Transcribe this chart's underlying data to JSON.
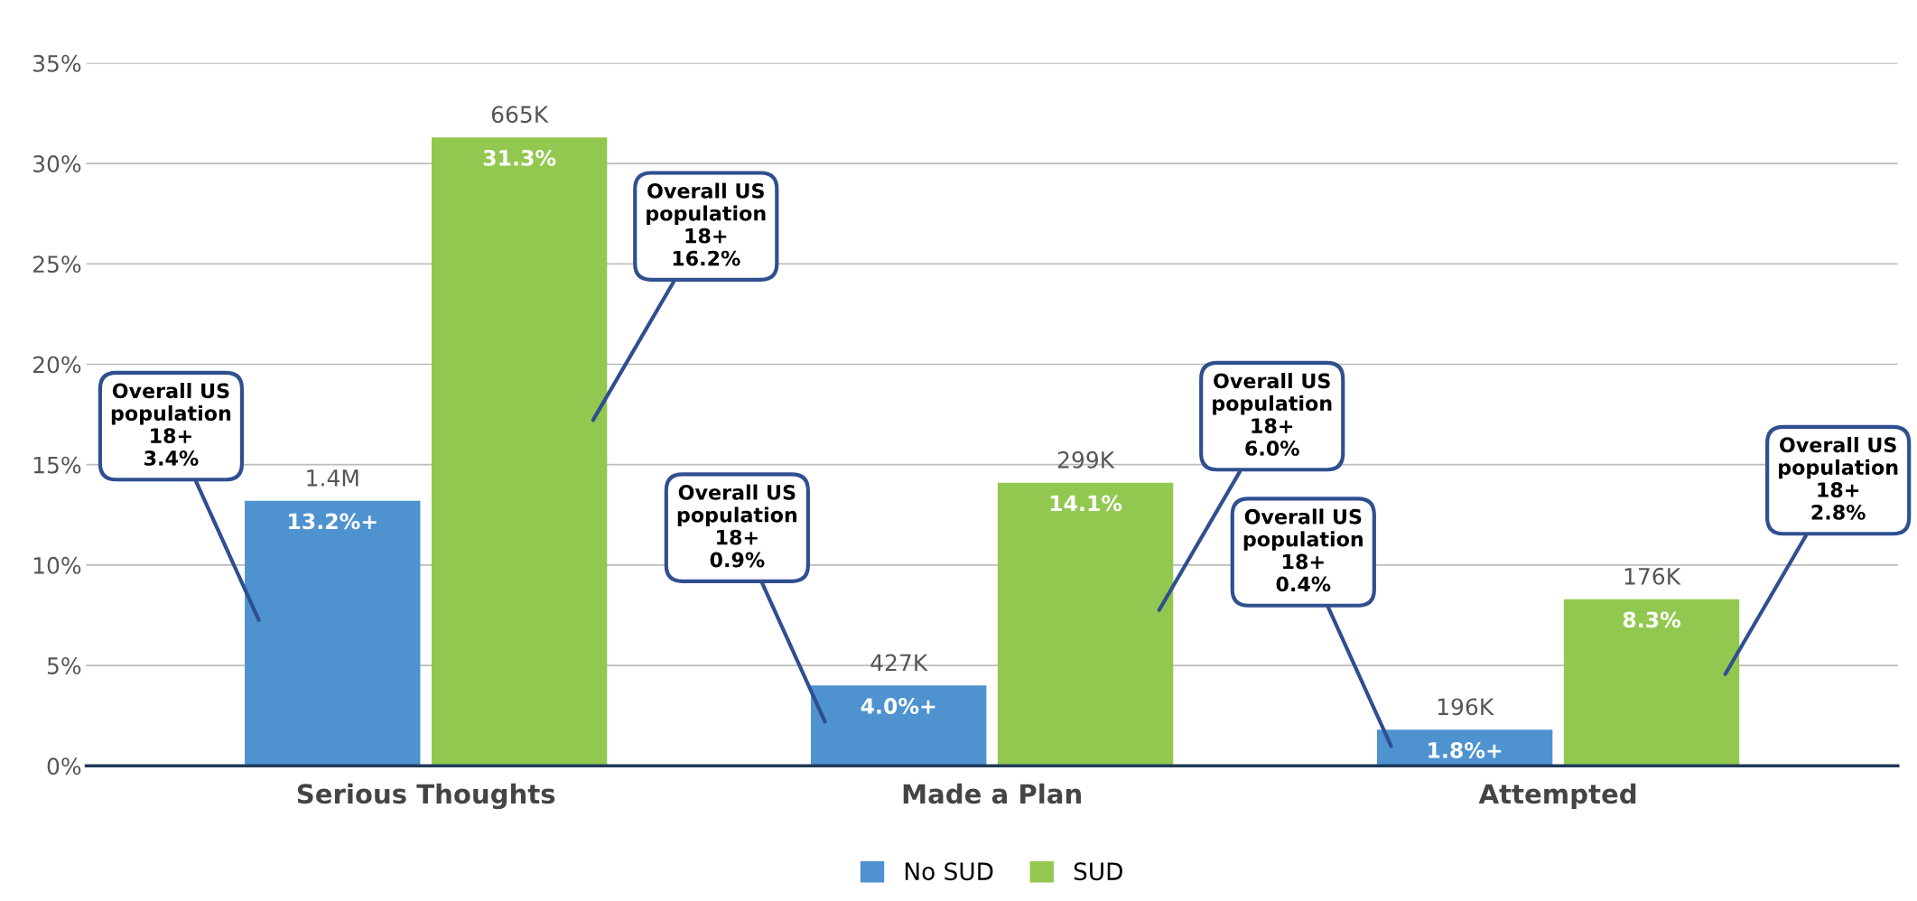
{
  "chart_data": {
    "type": "bar",
    "categories": [
      "Serious Thoughts",
      "Made a Plan",
      "Attempted"
    ],
    "series": [
      {
        "name": "No SUD",
        "color": "#4e92d0",
        "values": [
          13.2,
          4.0,
          1.8
        ],
        "value_labels": [
          "13.2%+",
          "4.0%+",
          "1.8%+"
        ]
      },
      {
        "name": "SUD",
        "color": "#92c850",
        "values": [
          31.3,
          14.1,
          8.3
        ],
        "value_labels": [
          "31.3%",
          "14.1%",
          "8.3%"
        ]
      }
    ],
    "ylim": [
      0,
      35
    ],
    "yticks": [
      {
        "value": 0,
        "label": "0%"
      },
      {
        "value": 5,
        "label": "5%"
      },
      {
        "value": 10,
        "label": "10%"
      },
      {
        "value": 15,
        "label": "15%"
      },
      {
        "value": 20,
        "label": "20%"
      },
      {
        "value": 25,
        "label": "25%"
      },
      {
        "value": 30,
        "label": "30%"
      },
      {
        "value": 35,
        "label": "35%"
      }
    ],
    "grid": "y",
    "legend": "bottom",
    "annotations": [
      "1.4M",
      "665K",
      "427K",
      "299K",
      "196K",
      "176K",
      "Overall US\npopulation\n18+\n3.4%",
      "Overall US\npopulation\n18+\n16.2%",
      "Overall US\npopulation\n18+\n0.9%",
      "Overall US\npopulation\n18+\n6.0%",
      "Overall US\npopulation\n18+\n0.4%",
      "Overall US\npopulation\n18+\n2.8%"
    ]
  }
}
